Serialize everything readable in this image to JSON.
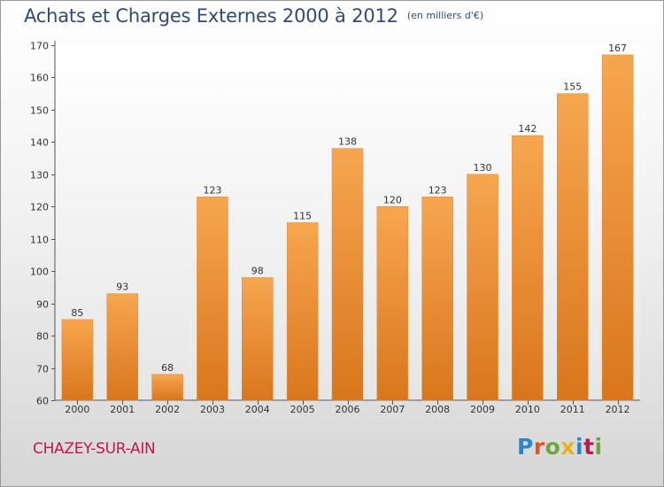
{
  "header": {
    "title": "Achats et Charges Externes 2000 à 2012",
    "unit": "(en milliers d'€)"
  },
  "footer": {
    "city": "CHAZEY-SUR-AIN",
    "logo_text": "Proxiti"
  },
  "colors": {
    "bar_light": "#f7a650",
    "bar_dark": "#d9761c",
    "title": "#2f4a78",
    "city": "#c1174f"
  },
  "chart_data": {
    "type": "bar",
    "title": "Achats et Charges Externes 2000 à 2012",
    "subtitle": "(en milliers d'€)",
    "categories": [
      "2000",
      "2001",
      "2002",
      "2003",
      "2004",
      "2005",
      "2006",
      "2007",
      "2008",
      "2009",
      "2010",
      "2011",
      "2012"
    ],
    "values": [
      85,
      93,
      68,
      123,
      98,
      115,
      138,
      120,
      123,
      130,
      142,
      155,
      167
    ],
    "ylim": [
      60,
      170
    ],
    "yticks": [
      60,
      70,
      80,
      90,
      100,
      110,
      120,
      130,
      140,
      150,
      160,
      170
    ],
    "xlabel": "",
    "ylabel": "",
    "grid": false,
    "data_labels": true
  }
}
